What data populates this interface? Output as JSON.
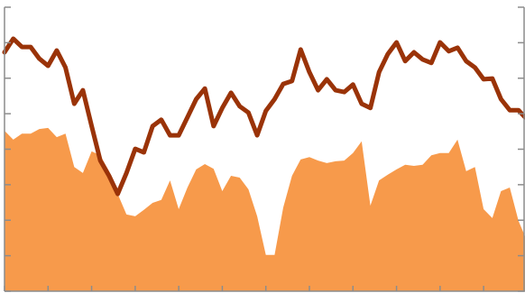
{
  "chart_data": {
    "type": "line",
    "x": [
      0,
      0.2,
      0.4,
      0.6,
      0.8,
      1,
      1.2,
      1.4,
      1.6,
      1.8,
      2,
      2.2,
      2.4,
      2.6,
      2.8,
      3,
      3.2,
      3.4,
      3.6,
      3.8,
      4,
      4.2,
      4.4,
      4.6,
      4.8,
      5,
      5.2,
      5.4,
      5.6,
      5.8,
      6,
      6.2,
      6.4,
      6.6,
      6.8,
      7,
      7.2,
      7.4,
      7.6,
      7.8,
      8,
      8.2,
      8.4,
      8.6,
      8.8,
      9,
      9.2,
      9.4,
      9.6,
      9.8,
      10,
      10.2,
      10.4,
      10.6,
      10.8,
      11,
      11.2,
      11.4,
      11.6,
      11.8,
      11.95
    ],
    "series": [
      {
        "kind": "area",
        "color": "#f79a4b",
        "values": [
          4.52,
          4.27,
          4.44,
          4.44,
          4.57,
          4.6,
          4.34,
          4.44,
          3.5,
          3.33,
          3.94,
          3.83,
          3.38,
          2.74,
          2.16,
          2.11,
          2.29,
          2.49,
          2.57,
          3.12,
          2.31,
          2.92,
          3.43,
          3.58,
          3.45,
          2.82,
          3.25,
          3.2,
          2.87,
          2.11,
          1.02,
          1.02,
          2.36,
          3.25,
          3.71,
          3.78,
          3.68,
          3.61,
          3.66,
          3.68,
          3.89,
          4.22,
          2.41,
          3.12,
          3.28,
          3.43,
          3.56,
          3.53,
          3.56,
          3.83,
          3.89,
          3.89,
          4.27,
          3.38,
          3.5,
          2.31,
          2.06,
          2.82,
          2.92,
          1.98,
          1.55
        ]
      },
      {
        "kind": "line",
        "color": "#9a3308",
        "values": [
          6.73,
          7.11,
          6.88,
          6.88,
          6.55,
          6.35,
          6.78,
          6.3,
          5.28,
          5.66,
          4.65,
          3.68,
          3.25,
          2.74,
          3.33,
          4.01,
          3.91,
          4.65,
          4.83,
          4.39,
          4.39,
          4.9,
          5.41,
          5.71,
          4.65,
          5.16,
          5.59,
          5.21,
          5.03,
          4.39,
          5.08,
          5.41,
          5.84,
          5.92,
          6.81,
          6.17,
          5.66,
          5.97,
          5.66,
          5.61,
          5.82,
          5.28,
          5.16,
          6.17,
          6.68,
          7.01,
          6.48,
          6.73,
          6.53,
          6.43,
          7.01,
          6.76,
          6.86,
          6.48,
          6.3,
          5.97,
          5.99,
          5.41,
          5.1,
          5.1,
          4.9
        ]
      }
    ],
    "xlim": [
      0,
      11.95
    ],
    "xticks": [
      0,
      1,
      2,
      3,
      4,
      5,
      6,
      7,
      8,
      9,
      10,
      11
    ],
    "ylim": [
      0,
      8
    ],
    "yticks": [
      0,
      1,
      2,
      3,
      4,
      5,
      6,
      7,
      8
    ],
    "axis_color": "#8c8c8c"
  }
}
